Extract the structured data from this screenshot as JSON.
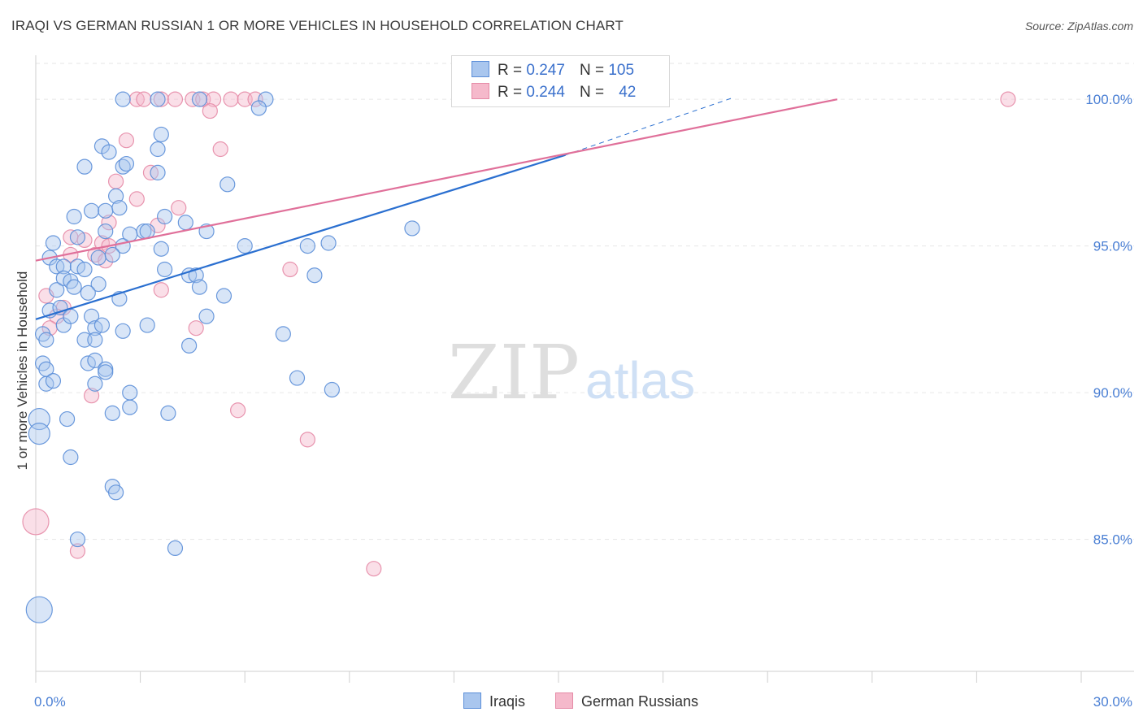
{
  "title": "IRAQI VS GERMAN RUSSIAN 1 OR MORE VEHICLES IN HOUSEHOLD CORRELATION CHART",
  "source": "Source: ZipAtlas.com",
  "legend": {
    "rows": [
      {
        "r_label": "R =",
        "r_value": "0.247",
        "n_label": "N =",
        "n_value": "105"
      },
      {
        "r_label": "R =",
        "r_value": "0.244",
        "n_label": "N =",
        "n_value": "42"
      }
    ]
  },
  "bottom_legend": {
    "iraqis": "Iraqis",
    "german_russians": "German Russians"
  },
  "watermark": {
    "zip": "ZIP",
    "atlas": "atlas"
  },
  "colors": {
    "blue_fill": "#a9c6ee",
    "blue_stroke": "#5b8ed8",
    "blue_line": "#2a6fd0",
    "pink_fill": "#f5b9cb",
    "pink_stroke": "#e58aa6",
    "pink_line": "#e0709a"
  },
  "chart_data": {
    "type": "scatter",
    "title": "IRAQI VS GERMAN RUSSIAN 1 OR MORE VEHICLES IN HOUSEHOLD CORRELATION CHART",
    "xlabel": "",
    "ylabel": "1 or more Vehicles in Household",
    "xlim": [
      0,
      30
    ],
    "ylim": [
      80.5,
      101.5
    ],
    "x_tick_labels": [
      "0.0%",
      "30.0%"
    ],
    "y_ticks": [
      85,
      90,
      95,
      100
    ],
    "y_tick_labels": [
      "85.0%",
      "90.0%",
      "95.0%",
      "100.0%"
    ],
    "grid": true,
    "legend_position": "top-center",
    "series": [
      {
        "name": "Iraqis",
        "r": 0.247,
        "n": 105,
        "trend": {
          "x": [
            0,
            15.2
          ],
          "y": [
            92.5,
            98.1
          ]
        },
        "trend_dashed": {
          "x": [
            15.2,
            20.0
          ],
          "y": [
            98.1,
            100.05
          ]
        },
        "points": [
          [
            2.5,
            100.0
          ],
          [
            3.5,
            100.0
          ],
          [
            4.7,
            100.0
          ],
          [
            6.6,
            100.0
          ],
          [
            6.4,
            99.7
          ],
          [
            3.6,
            98.8
          ],
          [
            3.5,
            98.3
          ],
          [
            1.9,
            98.4
          ],
          [
            2.1,
            98.2
          ],
          [
            1.4,
            97.7
          ],
          [
            2.5,
            97.7
          ],
          [
            2.6,
            97.8
          ],
          [
            3.5,
            97.5
          ],
          [
            5.5,
            97.1
          ],
          [
            1.1,
            96.0
          ],
          [
            1.6,
            96.2
          ],
          [
            2.0,
            96.2
          ],
          [
            2.3,
            96.7
          ],
          [
            2.4,
            96.3
          ],
          [
            3.1,
            95.5
          ],
          [
            3.2,
            95.5
          ],
          [
            3.7,
            96.0
          ],
          [
            4.3,
            95.8
          ],
          [
            4.9,
            95.5
          ],
          [
            10.8,
            95.6
          ],
          [
            1.2,
            95.3
          ],
          [
            2.0,
            95.5
          ],
          [
            2.5,
            95.0
          ],
          [
            2.7,
            95.4
          ],
          [
            3.6,
            94.9
          ],
          [
            6.0,
            95.0
          ],
          [
            7.8,
            95.0
          ],
          [
            8.4,
            95.1
          ],
          [
            0.5,
            95.1
          ],
          [
            0.4,
            94.6
          ],
          [
            0.6,
            94.3
          ],
          [
            0.8,
            94.3
          ],
          [
            1.2,
            94.3
          ],
          [
            1.4,
            94.2
          ],
          [
            1.8,
            94.6
          ],
          [
            2.2,
            94.7
          ],
          [
            3.7,
            94.2
          ],
          [
            4.4,
            94.0
          ],
          [
            4.6,
            94.0
          ],
          [
            8.0,
            94.0
          ],
          [
            0.6,
            93.5
          ],
          [
            0.8,
            93.9
          ],
          [
            1.0,
            93.8
          ],
          [
            1.1,
            93.6
          ],
          [
            1.8,
            93.7
          ],
          [
            1.5,
            93.4
          ],
          [
            2.4,
            93.2
          ],
          [
            4.7,
            93.6
          ],
          [
            5.4,
            93.3
          ],
          [
            0.4,
            92.8
          ],
          [
            0.7,
            92.9
          ],
          [
            0.8,
            92.3
          ],
          [
            1.0,
            92.6
          ],
          [
            1.6,
            92.6
          ],
          [
            1.7,
            92.2
          ],
          [
            1.9,
            92.3
          ],
          [
            2.5,
            92.1
          ],
          [
            3.2,
            92.3
          ],
          [
            4.9,
            92.6
          ],
          [
            7.1,
            92.0
          ],
          [
            0.2,
            92.0
          ],
          [
            0.3,
            91.8
          ],
          [
            1.4,
            91.8
          ],
          [
            1.7,
            91.8
          ],
          [
            4.4,
            91.6
          ],
          [
            0.2,
            91.0
          ],
          [
            0.3,
            90.8
          ],
          [
            1.5,
            91.0
          ],
          [
            1.7,
            91.1
          ],
          [
            2.0,
            90.8
          ],
          [
            2.0,
            90.7
          ],
          [
            1.7,
            90.3
          ],
          [
            0.3,
            90.3
          ],
          [
            0.5,
            90.4
          ],
          [
            2.7,
            90.0
          ],
          [
            2.7,
            89.5
          ],
          [
            2.2,
            89.3
          ],
          [
            3.8,
            89.3
          ],
          [
            7.5,
            90.5
          ],
          [
            8.5,
            90.1
          ],
          [
            0.1,
            89.1
          ],
          [
            0.9,
            89.1
          ],
          [
            0.1,
            88.6
          ],
          [
            1.0,
            87.8
          ],
          [
            2.2,
            86.8
          ],
          [
            2.3,
            86.6
          ],
          [
            1.2,
            85.0
          ],
          [
            4.0,
            84.7
          ],
          [
            0.1,
            82.6
          ]
        ]
      },
      {
        "name": "German Russians",
        "r": 0.244,
        "n": 42,
        "trend": {
          "x": [
            0,
            23.0
          ],
          "y": [
            94.5,
            100.0
          ]
        },
        "points": [
          [
            2.9,
            100.0
          ],
          [
            3.1,
            100.0
          ],
          [
            3.6,
            100.0
          ],
          [
            4.0,
            100.0
          ],
          [
            4.5,
            100.0
          ],
          [
            4.8,
            100.0
          ],
          [
            5.1,
            100.0
          ],
          [
            5.6,
            100.0
          ],
          [
            6.0,
            100.0
          ],
          [
            6.3,
            100.0
          ],
          [
            27.9,
            100.0
          ],
          [
            5.0,
            99.6
          ],
          [
            2.6,
            98.6
          ],
          [
            5.3,
            98.3
          ],
          [
            2.3,
            97.2
          ],
          [
            3.3,
            97.5
          ],
          [
            2.9,
            96.6
          ],
          [
            4.1,
            96.3
          ],
          [
            2.1,
            95.8
          ],
          [
            3.5,
            95.7
          ],
          [
            1.0,
            95.3
          ],
          [
            1.4,
            95.2
          ],
          [
            1.9,
            95.1
          ],
          [
            2.1,
            95.0
          ],
          [
            1.0,
            94.7
          ],
          [
            1.7,
            94.7
          ],
          [
            2.0,
            94.5
          ],
          [
            7.3,
            94.2
          ],
          [
            3.6,
            93.5
          ],
          [
            0.3,
            93.3
          ],
          [
            0.8,
            92.9
          ],
          [
            0.6,
            92.6
          ],
          [
            0.4,
            92.2
          ],
          [
            4.6,
            92.2
          ],
          [
            1.6,
            89.9
          ],
          [
            5.8,
            89.4
          ],
          [
            7.8,
            88.4
          ],
          [
            0.0,
            85.6
          ],
          [
            1.2,
            84.6
          ],
          [
            9.7,
            84.0
          ]
        ]
      }
    ]
  }
}
